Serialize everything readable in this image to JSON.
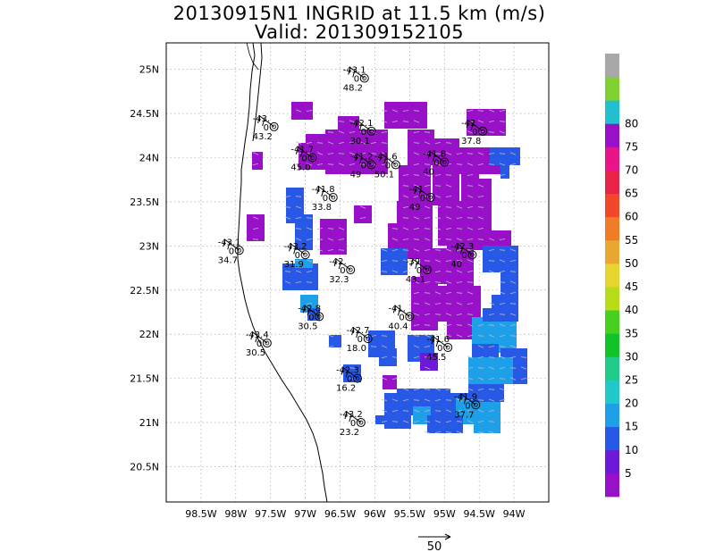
{
  "title": {
    "line1": "20130915N1 INGRID at 11.5 km (m/s)",
    "line2": "Valid: 201309152105"
  },
  "map": {
    "lon_range": [
      -99.0,
      -93.5
    ],
    "lat_range": [
      20.1,
      25.3
    ],
    "lat_ticks": [
      "25N",
      "24.5N",
      "24N",
      "23.5N",
      "23N",
      "22.5N",
      "22N",
      "21.5N",
      "21N",
      "20.5N"
    ],
    "lon_ticks": [
      "98.5W",
      "98W",
      "97.5W",
      "97W",
      "96.5W",
      "96W",
      "95.5W",
      "95W",
      "94.5W",
      "94W"
    ],
    "grid": true,
    "coastline": true
  },
  "colorbar": {
    "labels": [
      "5",
      "10",
      "15",
      "20",
      "25",
      "30",
      "35",
      "40",
      "45",
      "50",
      "55",
      "60",
      "65",
      "70",
      "75",
      "80"
    ],
    "colors": [
      "#9810c8",
      "#6c19d8",
      "#2858e6",
      "#1ea0e8",
      "#20c8c8",
      "#20cc88",
      "#10c428",
      "#48d020",
      "#b8dc18",
      "#e6d430",
      "#e8a830",
      "#f07c28",
      "#f04828",
      "#e82448",
      "#e81488",
      "#9810c8",
      "#20c0d0",
      "#80d030",
      "#a8a8a8"
    ]
  },
  "reference_arrow": {
    "label": "50"
  },
  "dropsondes": [
    {
      "top": "-43.1",
      "mid": "0",
      "bot": "48.2",
      "lon": -96.15,
      "lat": 24.9
    },
    {
      "top": "-43.",
      "mid": "0",
      "bot": "43.2",
      "lon": -97.45,
      "lat": 24.35
    },
    {
      "top": "-42.1",
      "mid": "0",
      "bot": "30.1",
      "lon": -96.05,
      "lat": 24.3
    },
    {
      "top": "-42",
      "mid": "0",
      "bot": "37.8",
      "lon": -94.45,
      "lat": 24.3
    },
    {
      "top": "-41.7",
      "mid": "0",
      "bot": "45.0",
      "lon": -96.9,
      "lat": 24.0
    },
    {
      "top": "-41.2",
      "mid": "0",
      "bot": "49",
      "lon": -96.05,
      "lat": 23.92
    },
    {
      "top": "-41.6",
      "mid": "0",
      "bot": "50.1",
      "lon": -95.7,
      "lat": 23.92
    },
    {
      "top": "-41.8",
      "mid": "0",
      "bot": "40",
      "lon": -95.0,
      "lat": 23.95
    },
    {
      "top": "-41.8",
      "mid": "0",
      "bot": "33.8",
      "lon": -96.6,
      "lat": 23.55
    },
    {
      "top": "-41",
      "mid": "0",
      "bot": "49",
      "lon": -95.2,
      "lat": 23.55
    },
    {
      "top": "-43.1",
      "mid": "0",
      "bot": "34.7",
      "lon": -97.95,
      "lat": 22.95
    },
    {
      "top": "-43.2",
      "mid": "0",
      "bot": "31.9",
      "lon": -97.0,
      "lat": 22.9
    },
    {
      "top": "-42.",
      "mid": "0",
      "bot": "32.3",
      "lon": -96.35,
      "lat": 22.73
    },
    {
      "top": "-39",
      "mid": "0",
      "bot": "43.1",
      "lon": -95.25,
      "lat": 22.73
    },
    {
      "top": "-42.3",
      "mid": "0",
      "bot": "40",
      "lon": -94.6,
      "lat": 22.9
    },
    {
      "top": "-42.8",
      "mid": "0",
      "bot": "30.5",
      "lon": -96.8,
      "lat": 22.2
    },
    {
      "top": "-41.",
      "mid": "0",
      "bot": "40.4",
      "lon": -95.5,
      "lat": 22.2
    },
    {
      "top": "-43.4",
      "mid": "0",
      "bot": "30.5",
      "lon": -97.55,
      "lat": 21.9
    },
    {
      "top": "-42.7",
      "mid": "0",
      "bot": "18.0",
      "lon": -96.1,
      "lat": 21.95
    },
    {
      "top": "-41.6",
      "mid": "0",
      "bot": "45.5",
      "lon": -94.95,
      "lat": 21.85
    },
    {
      "top": "-42.3",
      "mid": "0",
      "bot": "16.2",
      "lon": -96.25,
      "lat": 21.5
    },
    {
      "top": "-41.9",
      "mid": "0",
      "bot": "37.7",
      "lon": -94.55,
      "lat": 21.2
    },
    {
      "top": "-43.2",
      "mid": "0",
      "bot": "23.2",
      "lon": -96.2,
      "lat": 21.0
    }
  ]
}
